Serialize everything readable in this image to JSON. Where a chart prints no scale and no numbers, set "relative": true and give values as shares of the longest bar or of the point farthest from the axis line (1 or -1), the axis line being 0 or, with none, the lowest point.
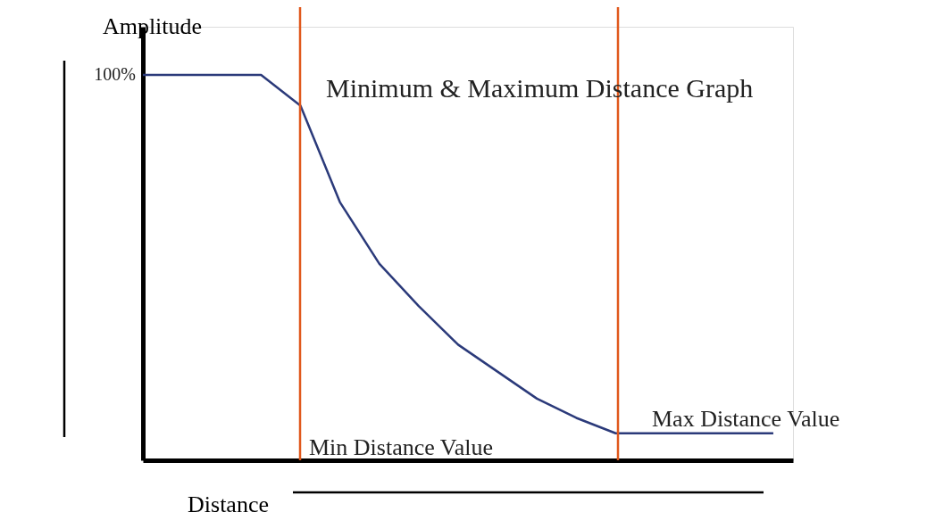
{
  "chart_data": {
    "type": "line",
    "title": "Minimum & Maximum Distance Graph",
    "xlabel": "Distance",
    "ylabel": "Amplitude",
    "relative": true,
    "categories": [
      null,
      null,
      null,
      null,
      null,
      null,
      null,
      null,
      null,
      null,
      null,
      null,
      null,
      null,
      null,
      null,
      null
    ],
    "series": [
      {
        "color": "#2b3a7a",
        "values": [
          1,
          1,
          1,
          1,
          0.92,
          0.67,
          0.51,
          0.4,
          0.3,
          0.23,
          0.16,
          0.11,
          0.07,
          0.07,
          0.07,
          0.07,
          0.07
        ]
      }
    ],
    "annotations": [
      "100%",
      "Min Distance Value",
      "Max Distance Value"
    ],
    "grid": false,
    "marker": "none",
    "line_style": "solid"
  }
}
